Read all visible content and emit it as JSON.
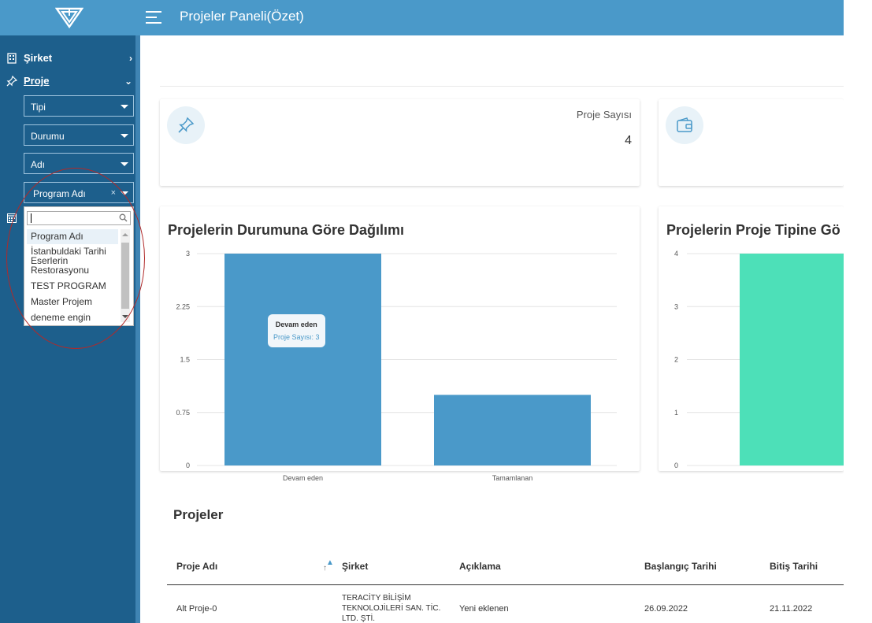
{
  "header": {
    "title": "Projeler Paneli(Özet)"
  },
  "sidebar": {
    "items": [
      {
        "label": "Şirket",
        "icon": "building-icon",
        "chevron": "›"
      },
      {
        "label": "Proje",
        "icon": "pin-icon",
        "chevron": "⌄"
      }
    ],
    "filters": [
      {
        "label": "Tipi"
      },
      {
        "label": "Durumu"
      },
      {
        "label": "Adı"
      },
      {
        "label": "Program Adı",
        "clear": "×"
      }
    ],
    "dropdown": {
      "search_value": "",
      "options": [
        "Program Adı",
        "İstanbuldaki Tarihi Eserlerin Restorasyonu",
        "TEST PROGRAM",
        "Master Projem",
        "deneme engin"
      ]
    }
  },
  "stats": [
    {
      "label": "Proje Sayısı",
      "value": "4",
      "icon": "pin-icon"
    },
    {
      "label": "",
      "value": "",
      "icon": "wallet-icon"
    }
  ],
  "charts": {
    "status": {
      "title": "Projelerin Durumuna Göre Dağılımı",
      "tooltip": {
        "title": "Devam eden",
        "value": "Proje Sayısı: 3"
      }
    },
    "type": {
      "title": "Projelerin Proje Tipine Gö"
    }
  },
  "chart_data": [
    {
      "type": "bar",
      "title": "Projelerin Durumuna Göre Dağılımı",
      "categories": [
        "Devam eden",
        "Tamamlanan"
      ],
      "series": [
        {
          "name": "Proje Sayısı",
          "values": [
            3,
            1
          ]
        }
      ],
      "ylim": [
        0,
        3
      ],
      "yticks": [
        "3",
        "2.25",
        "1.5",
        "0.75",
        "0"
      ],
      "grid": true,
      "color": "#4a99c9"
    },
    {
      "type": "bar",
      "title": "Projelerin Proje Tipine Gö",
      "categories": [
        ""
      ],
      "series": [
        {
          "values": [
            4
          ]
        }
      ],
      "ylim": [
        0,
        4
      ],
      "yticks": [
        "4",
        "3",
        "2",
        "1",
        "0"
      ],
      "grid": true,
      "color": "#4de0b8"
    }
  ],
  "table": {
    "title": "Projeler",
    "columns": [
      "Proje Adı",
      "Şirket",
      "Açıklama",
      "Başlangıç Tarihi",
      "Bitiş Tarihi"
    ],
    "rows": [
      [
        "Alt Proje-0",
        "TERACİTY BİLİŞİM TEKNOLOJİLERİ SAN. TİC. LTD. ŞTİ.",
        "Yeni eklenen",
        "26.09.2022",
        "21.11.2022"
      ]
    ]
  },
  "colors": {
    "header": "#4a99c9",
    "sidebar": "#1d5f8c",
    "bar_primary": "#4a99c9",
    "bar_secondary": "#4de0b8"
  }
}
